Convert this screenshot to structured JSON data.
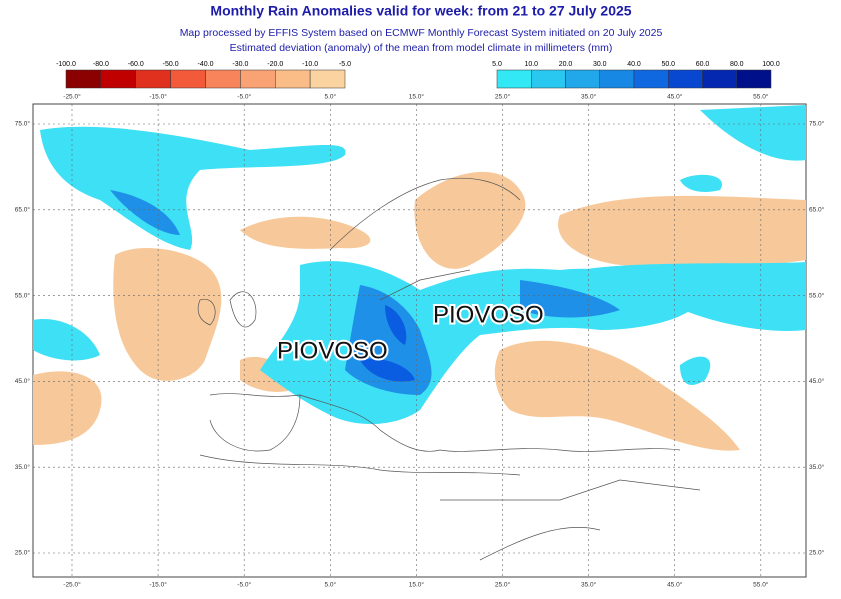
{
  "header": {
    "title": "Monthly Rain Anomalies valid for week: from 21 to 27 July 2025",
    "subtitle_1": "Map processed by EFFIS System based on ECMWF Monthly Forecast System initiated on 20 July 2025",
    "subtitle_2": "Estimated deviation (anomaly) of the mean from model climate in millimeters (mm)"
  },
  "colorbar": {
    "negative": [
      "-100.0",
      "-80.0",
      "-60.0",
      "-50.0",
      "-40.0",
      "-30.0",
      "-20.0",
      "-10.0",
      "-5.0"
    ],
    "positive": [
      "5.0",
      "10.0",
      "20.0",
      "30.0",
      "40.0",
      "50.0",
      "60.0",
      "80.0",
      "100.0"
    ]
  },
  "map": {
    "lon_labels": [
      "-25.0°",
      "-15.0°",
      "-5.0°",
      "5.0°",
      "15.0°",
      "25.0°",
      "35.0°",
      "45.0°",
      "55.0°"
    ],
    "lat_labels": [
      "75.0°",
      "65.0°",
      "55.0°",
      "45.0°",
      "35.0°",
      "25.0°"
    ],
    "annotations": [
      "PIOVOSO",
      "PIOVOSO"
    ]
  }
}
